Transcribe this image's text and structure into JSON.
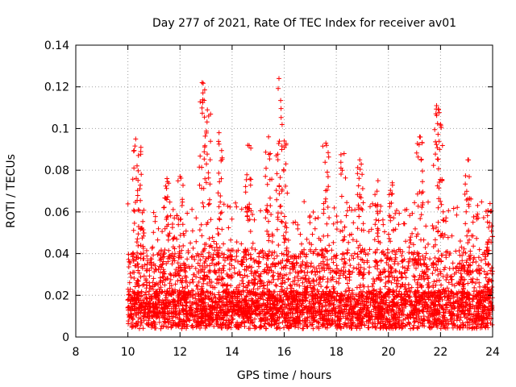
{
  "chart_data": {
    "type": "scatter",
    "title": "Day 277 of 2021, Rate Of TEC Index for receiver av01",
    "xlabel": "GPS time / hours",
    "ylabel": "ROTI / TECUs",
    "xlim": [
      8,
      24
    ],
    "ylim": [
      0,
      0.14
    ],
    "xticks": [
      "8",
      "10",
      "12",
      "14",
      "16",
      "18",
      "20",
      "22",
      "24"
    ],
    "yticks": [
      "0",
      "0.02",
      "0.04",
      "0.06",
      "0.08",
      "0.1",
      "0.12",
      "0.14"
    ],
    "grid": true,
    "marker": "+",
    "color": "#ff0000",
    "series": [
      {
        "peaks": [
          {
            "x": 10.3,
            "y": 0.095
          },
          {
            "x": 10.5,
            "y": 0.091
          },
          {
            "x": 11.5,
            "y": 0.076
          },
          {
            "x": 12.0,
            "y": 0.077
          },
          {
            "x": 12.85,
            "y": 0.122
          },
          {
            "x": 13.05,
            "y": 0.109
          },
          {
            "x": 13.5,
            "y": 0.098
          },
          {
            "x": 14.6,
            "y": 0.092
          },
          {
            "x": 15.4,
            "y": 0.096
          },
          {
            "x": 15.8,
            "y": 0.124
          },
          {
            "x": 16.0,
            "y": 0.094
          },
          {
            "x": 17.6,
            "y": 0.093
          },
          {
            "x": 18.3,
            "y": 0.088
          },
          {
            "x": 18.9,
            "y": 0.085
          },
          {
            "x": 19.6,
            "y": 0.075
          },
          {
            "x": 20.15,
            "y": 0.074
          },
          {
            "x": 21.2,
            "y": 0.096
          },
          {
            "x": 21.85,
            "y": 0.111
          },
          {
            "x": 22.0,
            "y": 0.102
          },
          {
            "x": 23.05,
            "y": 0.085
          },
          {
            "x": 23.9,
            "y": 0.064
          }
        ]
      }
    ]
  }
}
